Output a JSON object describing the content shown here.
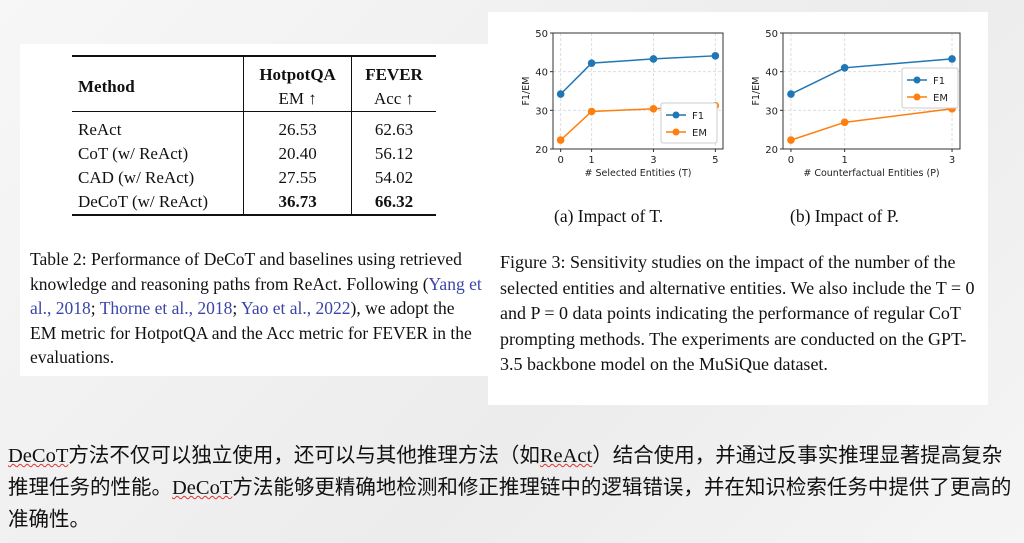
{
  "table": {
    "headers": {
      "method": "Method",
      "hotpot": "HotpotQA",
      "hotpot_metric": "EM ↑",
      "fever": "FEVER",
      "fever_metric": "Acc ↑"
    },
    "rows": [
      {
        "method": "ReAct",
        "em": "26.53",
        "acc": "62.63"
      },
      {
        "method": "CoT (w/ ReAct)",
        "em": "20.40",
        "acc": "56.12"
      },
      {
        "method": "CAD (w/ ReAct)",
        "em": "27.55",
        "acc": "54.02"
      },
      {
        "method": "DeCoT (w/ ReAct)",
        "em": "36.73",
        "acc": "66.32"
      }
    ],
    "caption_pre": "Table 2: Performance of DeCoT and baselines using retrieved knowledge and reasoning paths from ReAct. Following (",
    "cite1": "Yang et al., 2018",
    "sep1": "; ",
    "cite2": "Thorne et al., 2018",
    "sep2": "; ",
    "cite3": "Yao et al., 2022",
    "caption_post": "), we adopt the EM metric for HotpotQA and the Acc metric for FEVER in the evaluations."
  },
  "chart_data": [
    {
      "type": "line",
      "title": "",
      "xlabel": "# Selected Entities (T)",
      "ylabel": "F1/EM",
      "x": [
        0,
        1,
        3,
        5
      ],
      "ylim": [
        20,
        50
      ],
      "yticks": [
        20,
        30,
        40,
        50
      ],
      "grid": true,
      "legend": "lower-right",
      "series": [
        {
          "name": "F1",
          "color": "#1f77b4",
          "values": [
            34.2,
            42.2,
            43.3,
            44.1
          ]
        },
        {
          "name": "EM",
          "color": "#ff7f0e",
          "values": [
            22.3,
            29.7,
            30.4,
            31.2
          ]
        }
      ]
    },
    {
      "type": "line",
      "title": "",
      "xlabel": "# Counterfactual Entities (P)",
      "ylabel": "F1/EM",
      "x": [
        0,
        1,
        3
      ],
      "ylim": [
        20,
        50
      ],
      "yticks": [
        20,
        30,
        40,
        50
      ],
      "grid": true,
      "legend": "right",
      "series": [
        {
          "name": "F1",
          "color": "#1f77b4",
          "values": [
            34.2,
            41.0,
            43.3
          ]
        },
        {
          "name": "EM",
          "color": "#ff7f0e",
          "values": [
            22.3,
            26.9,
            30.4
          ]
        }
      ]
    }
  ],
  "figure": {
    "sub_a": "(a) Impact of T.",
    "sub_b": "(b) Impact of P.",
    "caption": "Figure 3: Sensitivity studies on the impact of the number of the selected entities and alternative entities. We also include the T = 0 and P = 0 data points indicating the performance of regular CoT prompting methods. The experiments are conducted on the GPT-3.5 backbone model on the MuSiQue dataset."
  },
  "summary": {
    "t1": "DeCoT",
    "t2": "方法不仅可以独立使用，还可以与其他推理方法（如",
    "t3": "ReAct",
    "t4": "）结合使用，并通过反事实推理显著提高复杂推理任务的性能。",
    "t5": "DeCoT",
    "t6": "方法能够更精确地检测和修正推理链中的逻辑错误，并在知识检索任务中提供了更高的准确性。"
  }
}
